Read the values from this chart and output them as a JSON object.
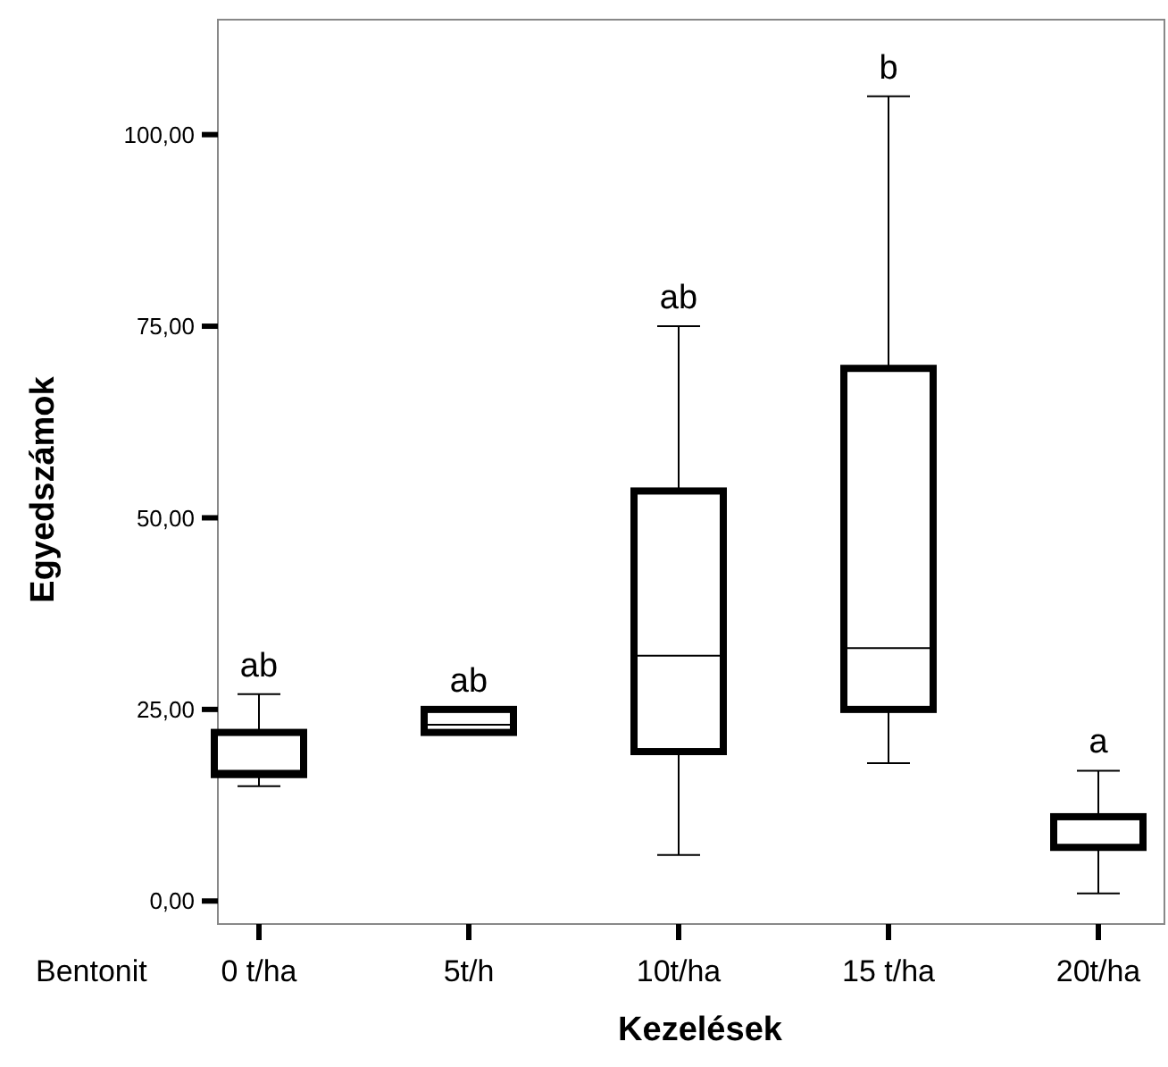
{
  "chart_data": {
    "type": "box",
    "xlabel": "Kezelések",
    "ylabel": "Egyedszámok",
    "categories": [
      "0 t/ha",
      "5t/h",
      "10t/ha",
      "15 t/ha",
      "20t/ha"
    ],
    "boxes": [
      {
        "low": 15,
        "q1": 16.5,
        "median": 17,
        "q3": 22,
        "high": 27
      },
      {
        "low": 22,
        "q1": 22,
        "median": 23,
        "q3": 25,
        "high": 25
      },
      {
        "low": 6,
        "q1": 19.5,
        "median": 32,
        "q3": 53.5,
        "high": 75
      },
      {
        "low": 18,
        "q1": 25,
        "median": 33,
        "q3": 69.5,
        "high": 105
      },
      {
        "low": 1,
        "q1": 7,
        "median": 7,
        "q3": 11,
        "high": 17
      }
    ],
    "ylim": [
      -3,
      115
    ],
    "yticks": [
      {
        "value": 0,
        "label": "0,00"
      },
      {
        "value": 25,
        "label": "25,00"
      },
      {
        "value": 50,
        "label": "50,00"
      },
      {
        "value": 75,
        "label": "75,00"
      },
      {
        "value": 100,
        "label": "100,00"
      }
    ],
    "grid": false,
    "annotations": [
      "Bentonit",
      {
        "text": "ab",
        "x": "0 t/ha",
        "y": 27
      },
      {
        "text": "ab",
        "x": "5t/h",
        "y": 25
      },
      {
        "text": "ab",
        "x": "10t/ha",
        "y": 75
      },
      {
        "text": "b",
        "x": "15 t/ha",
        "y": 105
      },
      {
        "text": "a",
        "x": "20t/ha",
        "y": 17
      }
    ]
  }
}
